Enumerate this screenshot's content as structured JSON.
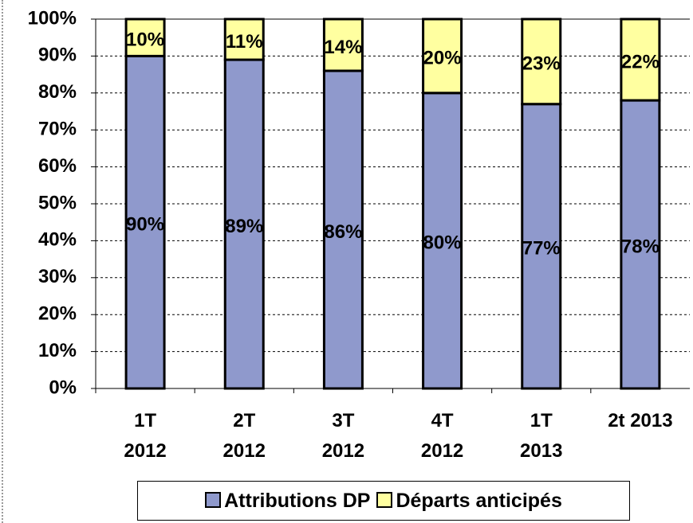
{
  "chart_data": {
    "type": "stacked_bar",
    "categories": [
      "1T\n2012",
      "2T\n2012",
      "3T\n2012",
      "4T\n2012",
      "1T\n2013",
      "2t 2013"
    ],
    "series": [
      {
        "name": "Attributions DP",
        "color": "#8f99cc",
        "values": [
          90,
          89,
          86,
          80,
          77,
          78
        ],
        "value_labels": [
          "90%",
          "89%",
          "86%",
          "80%",
          "77%",
          "78%"
        ]
      },
      {
        "name": "Départs anticipés",
        "color": "#ffffa0",
        "values": [
          10,
          11,
          14,
          20,
          23,
          22
        ],
        "value_labels": [
          "10%",
          "11%",
          "14%",
          "20%",
          "23%",
          "22%"
        ]
      }
    ],
    "ylim": [
      0,
      100
    ],
    "yticks": [
      {
        "value": 0,
        "label": "0%"
      },
      {
        "value": 10,
        "label": "10%"
      },
      {
        "value": 20,
        "label": "20%"
      },
      {
        "value": 30,
        "label": "30%"
      },
      {
        "value": 40,
        "label": "40%"
      },
      {
        "value": 50,
        "label": "50%"
      },
      {
        "value": 60,
        "label": "60%"
      },
      {
        "value": 70,
        "label": "70%"
      },
      {
        "value": 80,
        "label": "80%"
      },
      {
        "value": 90,
        "label": "90%"
      },
      {
        "value": 100,
        "label": "100%"
      }
    ],
    "grid": true
  }
}
